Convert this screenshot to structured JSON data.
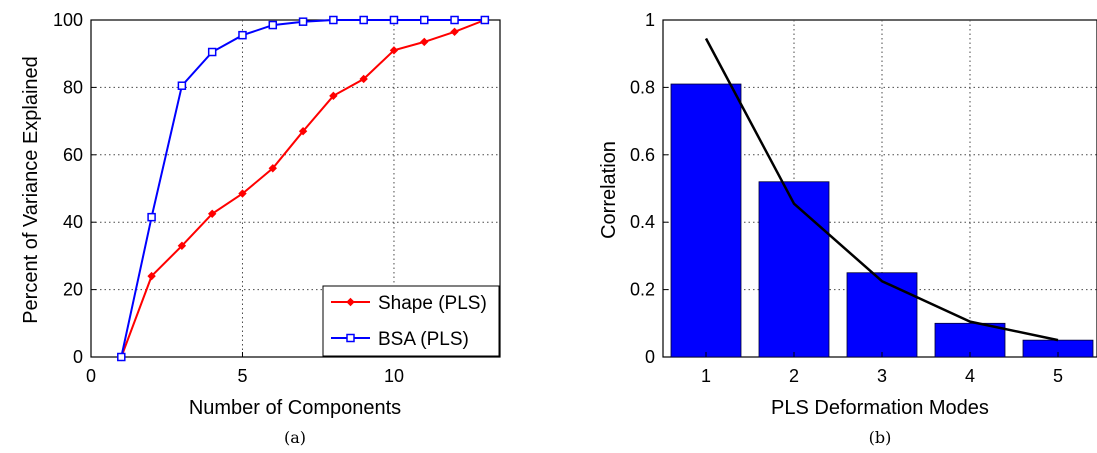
{
  "chart_data": [
    {
      "type": "line",
      "caption": "(a)",
      "xlabel": "Number of Components",
      "ylabel": "Percent of Variance Explained",
      "xlim": [
        0,
        13.5
      ],
      "ylim": [
        0,
        100
      ],
      "xticks": [
        0,
        5,
        10
      ],
      "yticks": [
        0,
        20,
        40,
        60,
        80,
        100
      ],
      "grid": true,
      "legend_position": "bottom-right",
      "series": [
        {
          "name": "Shape (PLS)",
          "color": "#ff0000",
          "marker": "diamond",
          "x": [
            1,
            2,
            3,
            4,
            5,
            6,
            7,
            8,
            9,
            10,
            11,
            12,
            13
          ],
          "y": [
            0,
            24,
            33,
            42.5,
            48.5,
            56,
            67,
            77.5,
            82.5,
            91,
            93.5,
            96.5,
            100
          ]
        },
        {
          "name": "BSA (PLS)",
          "color": "#0000ff",
          "marker": "square",
          "x": [
            1,
            2,
            3,
            4,
            5,
            6,
            7,
            8,
            9,
            10,
            11,
            12,
            13
          ],
          "y": [
            0,
            41.5,
            80.5,
            90.5,
            95.5,
            98.5,
            99.5,
            100,
            100,
            100,
            100,
            100,
            100
          ]
        }
      ]
    },
    {
      "type": "bar",
      "caption": "(b)",
      "xlabel": "PLS Deformation Modes",
      "ylabel": "Correlation",
      "categories": [
        "1",
        "2",
        "3",
        "4",
        "5"
      ],
      "values": [
        0.81,
        0.52,
        0.25,
        0.1,
        0.05
      ],
      "bar_color": "#0000ff",
      "line_overlay": {
        "color": "#000000",
        "x": [
          1,
          2,
          3,
          4,
          5
        ],
        "y": [
          0.945,
          0.455,
          0.225,
          0.105,
          0.05
        ]
      },
      "ylim": [
        0,
        1
      ],
      "yticks": [
        "0",
        "0.2",
        "0.4",
        "0.6",
        "0.8",
        "1"
      ],
      "grid": true
    }
  ]
}
